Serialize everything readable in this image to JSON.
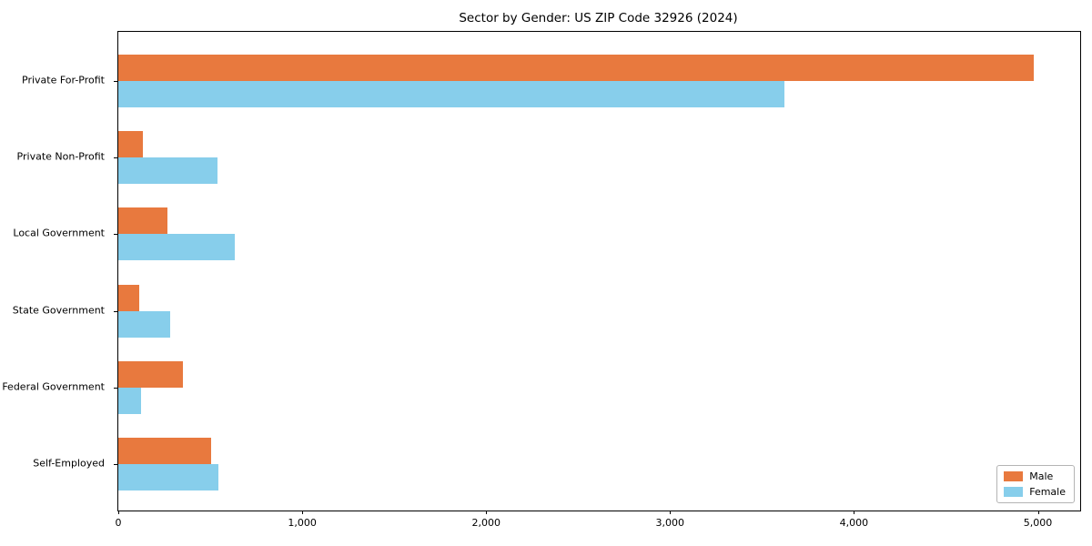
{
  "chart_data": {
    "type": "bar",
    "orientation": "horizontal",
    "title": "Sector by Gender: US ZIP Code 32926 (2024)",
    "categories": [
      "Private For-Profit",
      "Private Non-Profit",
      "Local Government",
      "State Government",
      "Federal Government",
      "Self-Employed"
    ],
    "series": [
      {
        "name": "Male",
        "color": "#e8793e",
        "values": [
          4980,
          135,
          265,
          115,
          350,
          505
        ]
      },
      {
        "name": "Female",
        "color": "#87ceeb",
        "values": [
          3620,
          540,
          635,
          280,
          125,
          545
        ]
      }
    ],
    "xlim": [
      0,
      5230
    ],
    "xticks": [
      {
        "value": 0,
        "label": "0"
      },
      {
        "value": 1000,
        "label": "1,000"
      },
      {
        "value": 2000,
        "label": "2,000"
      },
      {
        "value": 3000,
        "label": "3,000"
      },
      {
        "value": 4000,
        "label": "4,000"
      },
      {
        "value": 5000,
        "label": "5,000"
      }
    ],
    "xlabel": "",
    "ylabel": "",
    "grid": false,
    "legend_position": "lower right",
    "background_color": "#ffffff",
    "spine_color": "#000000"
  }
}
